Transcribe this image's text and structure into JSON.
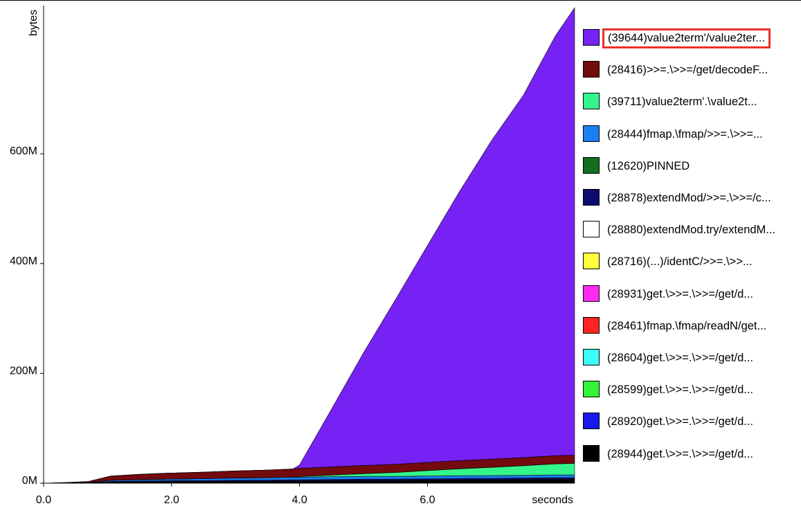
{
  "chart_data": {
    "type": "area",
    "ylabel": "bytes",
    "xlabel": "seconds",
    "xlim": [
      0,
      8.3
    ],
    "ylim": [
      0,
      870
    ],
    "x_ticks": [
      "0.0",
      "2.0",
      "4.0",
      "6.0"
    ],
    "y_ticks": [
      "0M",
      "200M",
      "400M",
      "600M"
    ],
    "x_tick_values": [
      0,
      2,
      4,
      6
    ],
    "y_tick_values": [
      0,
      200,
      400,
      600
    ],
    "x": [
      0,
      0.35,
      0.7,
      1.05,
      1.5,
      2.0,
      2.5,
      3.0,
      3.5,
      3.9,
      4.0,
      4.5,
      5.0,
      5.5,
      6.0,
      6.5,
      7.0,
      7.5,
      8.0,
      8.3
    ],
    "series": [
      {
        "name": "(28944)get.\\>>=.\\>>=/get/d...",
        "color": "#000000",
        "values": [
          0,
          0.3,
          0.6,
          2,
          2.5,
          3,
          3,
          3.5,
          3.5,
          4,
          4,
          4.5,
          5,
          5,
          5.5,
          6,
          6,
          6.5,
          7,
          7
        ]
      },
      {
        "name": "(28878)extendMod/>>=.\\>>=/c...",
        "color": "#0c0c70",
        "values": [
          0,
          0.2,
          0.4,
          1,
          1.2,
          1.5,
          1.6,
          1.8,
          2,
          2,
          2,
          2.2,
          2.3,
          2.4,
          2.5,
          2.6,
          2.7,
          2.8,
          3,
          3
        ]
      },
      {
        "name": "(28444)fmap.\\fmap/>>=.\\>>=...",
        "color": "#1a7ff0",
        "values": [
          0,
          0.3,
          0.6,
          2,
          2.5,
          3,
          3.5,
          4,
          4.5,
          5,
          5,
          5,
          5,
          5,
          5,
          5,
          5,
          5,
          5,
          5
        ]
      },
      {
        "name": "(39711)value2term'.\\value2t...",
        "color": "#34f58a",
        "values": [
          0,
          0,
          0,
          0,
          0,
          0,
          0,
          0,
          0,
          0,
          1,
          3,
          5,
          7,
          10,
          12.5,
          15,
          17.5,
          20,
          21
        ]
      },
      {
        "name": "(28416)>>=.\\>>=/get/decodeF...",
        "color": "#720a0e",
        "values": [
          0,
          0.5,
          1.5,
          8,
          10,
          11,
          12,
          13,
          14,
          15,
          15,
          15,
          15,
          15,
          15,
          15,
          15,
          15,
          15,
          15
        ]
      },
      {
        "name": "(39644)value2term'/value2ter...",
        "color": "#7722f5",
        "values": [
          0,
          0,
          0,
          0,
          0,
          0,
          0,
          0,
          0,
          0,
          6,
          105,
          205,
          300,
          395,
          490,
          580,
          660,
          765,
          815
        ]
      }
    ],
    "legend": [
      {
        "label": "(39644)value2term'/value2ter...",
        "color": "#7722f5",
        "highlighted": true
      },
      {
        "label": "(28416)>>=.\\>>=/get/decodeF...",
        "color": "#720a0e"
      },
      {
        "label": "(39711)value2term'.\\value2t...",
        "color": "#34f58a"
      },
      {
        "label": "(28444)fmap.\\fmap/>>=.\\>>=...",
        "color": "#1a7ff0"
      },
      {
        "label": "(12620)PINNED",
        "color": "#136e1f"
      },
      {
        "label": "(28878)extendMod/>>=.\\>>=/c...",
        "color": "#0c0c70"
      },
      {
        "label": "(28880)extendMod.try/extendM...",
        "color": "#ffffff"
      },
      {
        "label": "(28716)(...)/identC/>>=.\\>>...",
        "color": "#ffff3c"
      },
      {
        "label": "(28931)get.\\>>=.\\>>=/get/d...",
        "color": "#ff2af0"
      },
      {
        "label": "(28461)fmap.\\fmap/readN/get...",
        "color": "#ff2323"
      },
      {
        "label": "(28604)get.\\>>=.\\>>=/get/d...",
        "color": "#3dfdf7"
      },
      {
        "label": "(28599)get.\\>>=.\\>>=/get/d...",
        "color": "#34f238"
      },
      {
        "label": "(28920)get.\\>>=.\\>>=/get/d...",
        "color": "#1919ef"
      },
      {
        "label": "(28944)get.\\>>=.\\>>=/get/d...",
        "color": "#000000"
      }
    ]
  }
}
